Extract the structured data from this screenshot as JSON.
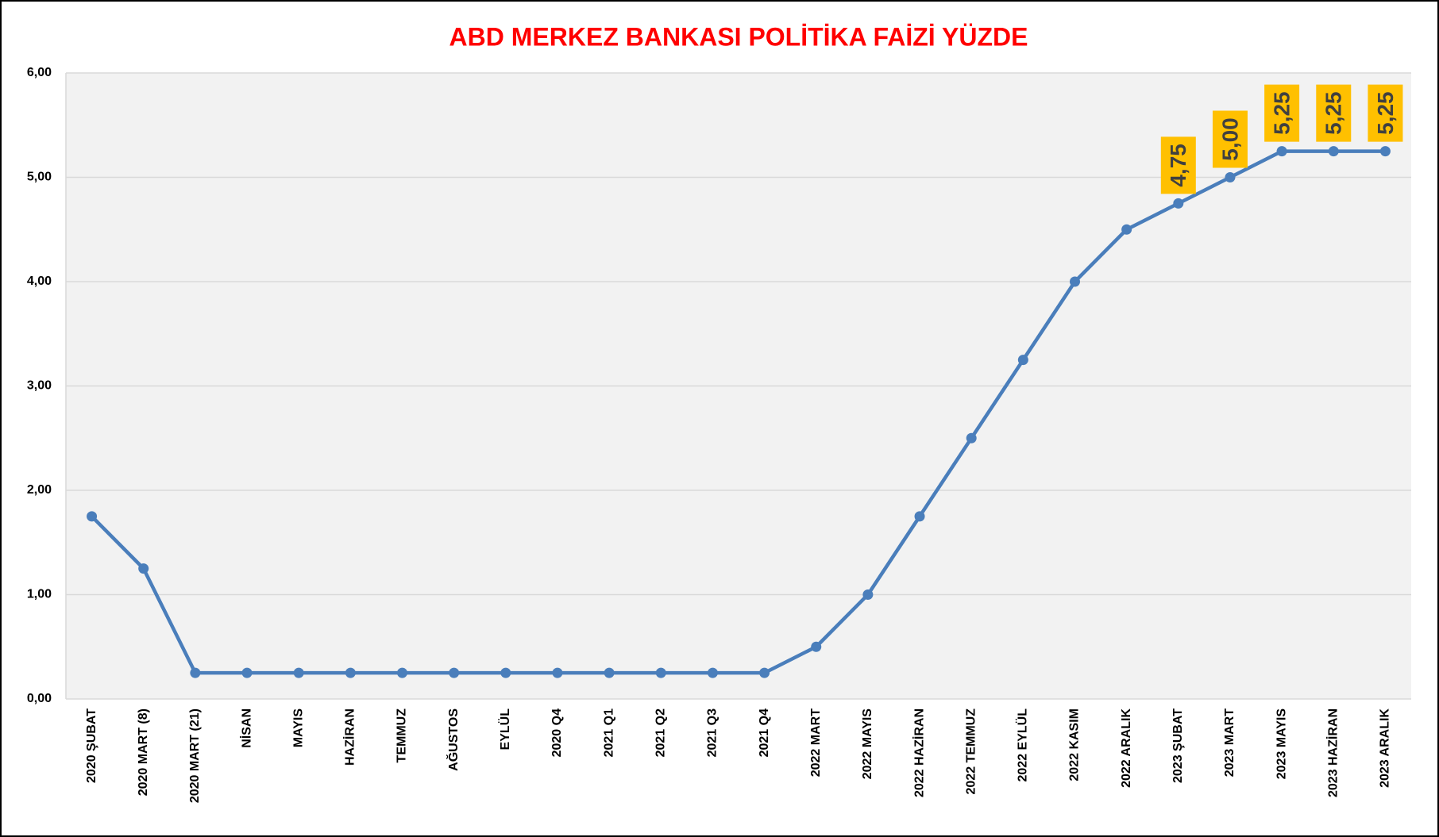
{
  "chart_data": {
    "type": "line",
    "title": "ABD MERKEZ BANKASI POLİTİKA FAİZİ YÜZDE",
    "categories": [
      "2020 ŞUBAT",
      "2020 MART (8)",
      "2020 MART (21)",
      "NİSAN",
      "MAYIS",
      "HAZİRAN",
      "TEMMUZ",
      "AĞUSTOS",
      "EYLÜL",
      "2020 Q4",
      "2021 Q1",
      "2021 Q2",
      "2021 Q3",
      "2021 Q4",
      "2022 MART",
      "2022 MAYIS",
      "2022 HAZİRAN",
      "2022 TEMMUZ",
      "2022 EYLÜL",
      "2022 KASIM",
      "2022 ARALIK",
      "2023 ŞUBAT",
      "2023 MART",
      "2023 MAYIS",
      "2023 HAZİRAN",
      "2023 ARALIK"
    ],
    "values": [
      1.75,
      1.25,
      0.25,
      0.25,
      0.25,
      0.25,
      0.25,
      0.25,
      0.25,
      0.25,
      0.25,
      0.25,
      0.25,
      0.25,
      0.5,
      1.0,
      1.75,
      2.5,
      3.25,
      4.0,
      4.5,
      4.75,
      5.0,
      5.25,
      5.25,
      5.25
    ],
    "value_labels": [
      null,
      null,
      null,
      null,
      null,
      null,
      null,
      null,
      null,
      null,
      null,
      null,
      null,
      null,
      null,
      null,
      null,
      null,
      null,
      null,
      null,
      "4,75",
      "5,00",
      "5,25",
      "5,25",
      "5,25"
    ],
    "color": "#4a7ebb",
    "label_color": "#ffc000",
    "ylim": [
      0,
      6
    ],
    "yticks": [
      {
        "value": 0,
        "label": "0,00"
      },
      {
        "value": 1,
        "label": "1,00"
      },
      {
        "value": 2,
        "label": "2,00"
      },
      {
        "value": 3,
        "label": "3,00"
      },
      {
        "value": 4,
        "label": "4,00"
      },
      {
        "value": 5,
        "label": "5,00"
      },
      {
        "value": 6,
        "label": "6,00"
      }
    ],
    "grid": true
  }
}
